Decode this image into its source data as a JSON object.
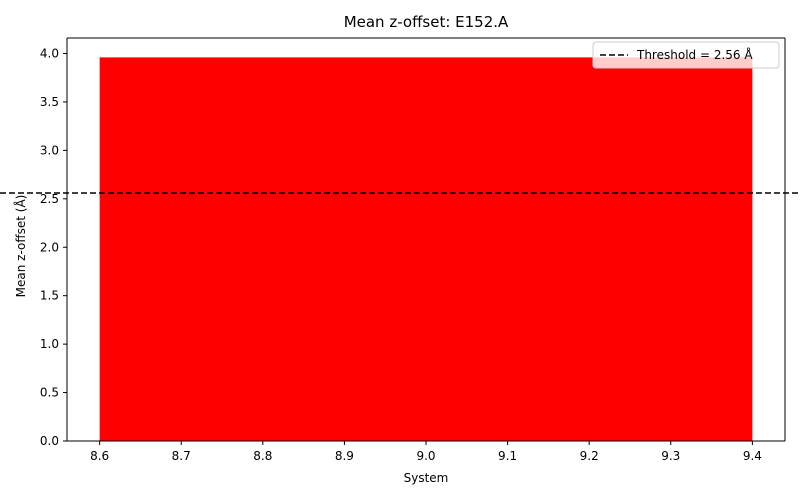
{
  "chart_data": {
    "type": "bar",
    "title": "Mean z-offset: E152.A",
    "xlabel": "System",
    "ylabel": "Mean z-offset (Å)",
    "bars": [
      {
        "x_start": 8.6,
        "x_end": 9.4,
        "value": 3.96,
        "color": "#ff0000"
      }
    ],
    "xlim": [
      8.56,
      9.44
    ],
    "ylim": [
      0,
      4.16
    ],
    "xticks": [
      8.6,
      8.7,
      8.8,
      8.9,
      9.0,
      9.1,
      9.2,
      9.3,
      9.4
    ],
    "xtick_labels": [
      "8.6",
      "8.7",
      "8.8",
      "8.9",
      "9.0",
      "9.1",
      "9.2",
      "9.3",
      "9.4"
    ],
    "yticks": [
      0,
      0.5,
      1.0,
      1.5,
      2.0,
      2.5,
      3.0,
      3.5,
      4.0
    ],
    "ytick_labels": [
      "0.0",
      "0.5",
      "1.0",
      "1.5",
      "2.0",
      "2.5",
      "3.0",
      "3.5",
      "4.0"
    ],
    "threshold": {
      "value": 2.56,
      "label": "Threshold = 2.56 Å",
      "color": "#000000",
      "style": "dashed"
    },
    "legend": {
      "position": "top-right",
      "entries": [
        "Threshold = 2.56 Å"
      ]
    },
    "grid": false
  }
}
